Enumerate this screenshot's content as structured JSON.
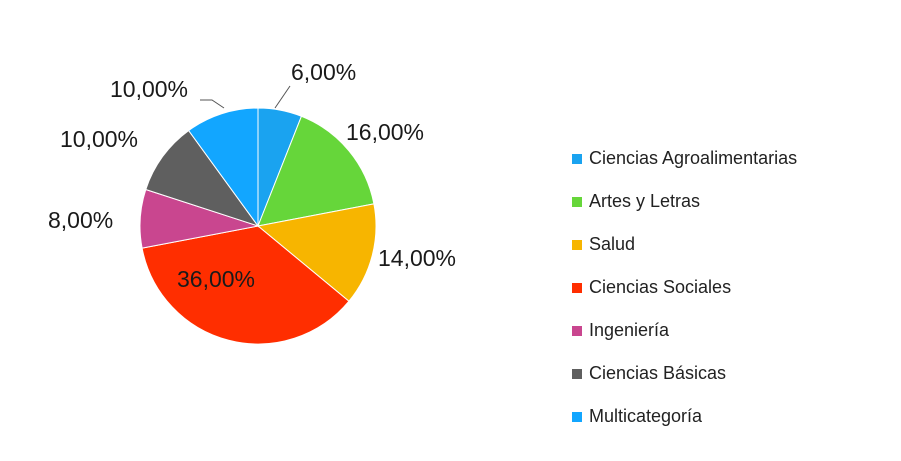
{
  "chart_data": {
    "type": "pie",
    "categories": [
      "Ciencias Agroalimentarias",
      "Artes y Letras",
      "Salud",
      "Ciencias Sociales",
      "Ingeniería",
      "Ciencias Básicas",
      "Multicategoría"
    ],
    "values": [
      6,
      16,
      14,
      36,
      8,
      10,
      10
    ],
    "data_labels": [
      "6,00%",
      "16,00%",
      "14,00%",
      "36,00%",
      "8,00%",
      "10,00%",
      "10,00%"
    ],
    "colors": [
      "#1aa3f0",
      "#66d63a",
      "#f7b500",
      "#ff2e00",
      "#c9468f",
      "#5f5f5f",
      "#12a6ff"
    ],
    "legend_position": "right",
    "title": ""
  }
}
